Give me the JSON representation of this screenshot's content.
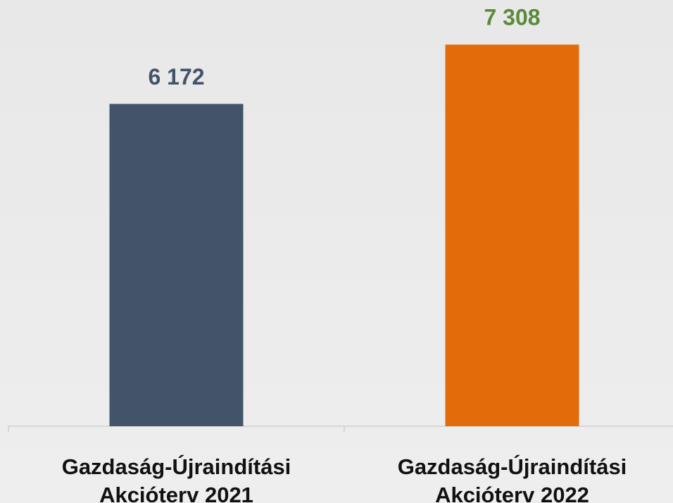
{
  "chart_data": {
    "type": "bar",
    "categories": [
      "Gazdaság-Újraindítási Akcióterv 2021",
      "Gazdaság-Újraindítási Akcióterv 2022"
    ],
    "values": [
      6172,
      7308
    ],
    "value_labels": [
      "6 172",
      "7 308"
    ],
    "colors": [
      "#435369",
      "#e36c0a"
    ],
    "label_colors": [
      "#435369",
      "#5b8a3a"
    ],
    "ylim": [
      0,
      8000
    ]
  }
}
